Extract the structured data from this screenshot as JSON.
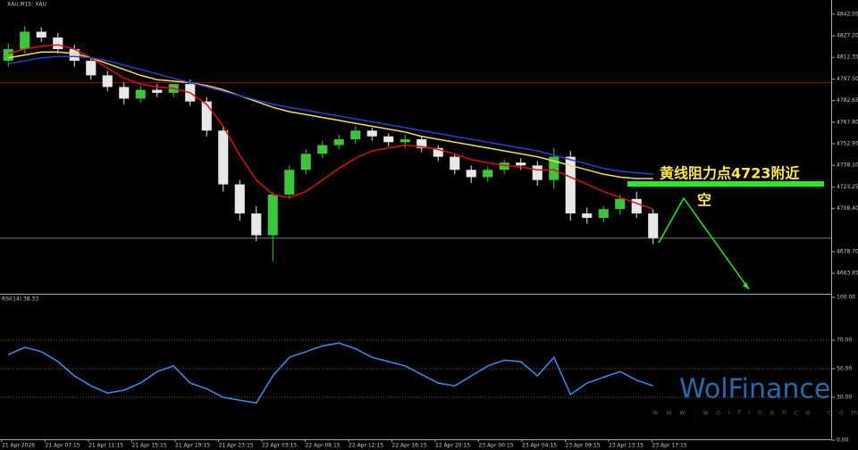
{
  "chart_data": {
    "type": "candlestick",
    "title": "XAU,M15: XAU",
    "rsi_label": "RSI(14) 38.33",
    "time_labels": [
      "21 Apr 2026",
      "21 Apr 07:15",
      "21 Apr 11:15",
      "21 Apr 15:15",
      "21 Apr 19:15",
      "21 Apr 23:15",
      "22 Apr 03:15",
      "22 Apr 08:15",
      "22 Apr 12:15",
      "22 Apr 16:15",
      "22 Apr 20:15",
      "23 Apr 00:15",
      "23 Apr 04:15",
      "23 Apr 09:15",
      "23 Apr 13:15",
      "23 Apr 17:15"
    ],
    "open": [
      4810,
      4818,
      4830,
      4826,
      4818,
      4810,
      4800,
      4792,
      4784,
      4790,
      4788,
      4794,
      4782,
      4762,
      4725,
      4705,
      4690,
      4718,
      4735,
      4746,
      4752,
      4756,
      4762,
      4758,
      4754,
      4756,
      4750,
      4744,
      4735,
      4730,
      4735,
      4740,
      4738,
      4728,
      4744,
      4705,
      4702,
      4708,
      4715,
      4705
    ],
    "high": [
      4822,
      4834,
      4833,
      4829,
      4821,
      4812,
      4803,
      4795,
      4793,
      4794,
      4792,
      4797,
      4785,
      4765,
      4728,
      4710,
      4720,
      4738,
      4749,
      4755,
      4759,
      4765,
      4764,
      4760,
      4759,
      4758,
      4752,
      4746,
      4738,
      4737,
      4742,
      4743,
      4741,
      4750,
      4748,
      4709,
      4710,
      4718,
      4720,
      4708
    ],
    "low": [
      4806,
      4815,
      4823,
      4815,
      4806,
      4797,
      4789,
      4780,
      4781,
      4785,
      4785,
      4779,
      4758,
      4720,
      4700,
      4686,
      4672,
      4715,
      4732,
      4743,
      4749,
      4753,
      4755,
      4751,
      4750,
      4747,
      4741,
      4732,
      4726,
      4727,
      4732,
      4735,
      4724,
      4722,
      4700,
      4698,
      4699,
      4704,
      4702,
      4684
    ],
    "close": [
      4818,
      4830,
      4826,
      4818,
      4810,
      4800,
      4792,
      4784,
      4790,
      4788,
      4794,
      4782,
      4762,
      4725,
      4705,
      4690,
      4718,
      4735,
      4746,
      4752,
      4756,
      4762,
      4758,
      4754,
      4756,
      4750,
      4744,
      4735,
      4730,
      4735,
      4740,
      4738,
      4728,
      4744,
      4705,
      4702,
      4708,
      4715,
      4705,
      4688
    ],
    "series": [
      {
        "color": "#e01010",
        "values": [
          4815,
          4818,
          4820,
          4821,
          4818,
          4812,
          4805,
          4798,
          4794,
          4792,
          4791,
          4788,
          4780,
          4765,
          4745,
          4728,
          4718,
          4716,
          4720,
          4728,
          4736,
          4743,
          4748,
          4750,
          4752,
          4751,
          4749,
          4746,
          4742,
          4740,
          4738,
          4737,
          4735,
          4735,
          4730,
          4725,
          4720,
          4716,
          4712,
          4708
        ]
      },
      {
        "color": "#f2e04a",
        "values": [
          4812,
          4814,
          4816,
          4816,
          4815,
          4812,
          4808,
          4804,
          4800,
          4797,
          4796,
          4795,
          4793,
          4790,
          4786,
          4782,
          4778,
          4775,
          4773,
          4771,
          4769,
          4767,
          4765,
          4763,
          4761,
          4758,
          4756,
          4754,
          4752,
          4750,
          4748,
          4746,
          4744,
          4741,
          4738,
          4735,
          4732,
          4730,
          4729,
          4729
        ]
      },
      {
        "color": "#2a3fd8",
        "values": [
          4808,
          4810,
          4812,
          4813,
          4813,
          4812,
          4810,
          4807,
          4804,
          4801,
          4798,
          4795,
          4792,
          4789,
          4786,
          4783,
          4780,
          4778,
          4776,
          4774,
          4772,
          4770,
          4768,
          4766,
          4764,
          4762,
          4760,
          4758,
          4756,
          4754,
          4752,
          4750,
          4748,
          4745,
          4742,
          4739,
          4736,
          4734,
          4733,
          4732
        ]
      }
    ],
    "hline": 4795,
    "ylim": [
      4650.4,
      4851.8
    ],
    "yticks": [
      4842.05,
      {
        "value": 4827.2,
        "label": "4827.20"
      },
      4812.35,
      {
        "value": 4797.5,
        "label": "4797.50"
      },
      4782.65,
      {
        "value": 4767.8,
        "label": "4767.80"
      },
      4752.95,
      {
        "value": 4738.1,
        "label": "4738.10"
      },
      4723.25,
      {
        "value": 4708.4,
        "label": "4708.40"
      },
      {
        "value": 4678.7,
        "label": "4678.70"
      },
      4663.85
    ],
    "rsi": {
      "color": "#3a8ef0",
      "values": [
        60,
        65,
        62,
        55,
        45,
        38,
        33,
        35,
        40,
        48,
        52,
        40,
        36,
        30,
        28,
        26,
        45,
        58,
        62,
        66,
        68,
        64,
        58,
        55,
        52,
        46,
        40,
        38,
        45,
        52,
        56,
        55,
        45,
        58,
        32,
        40,
        44,
        48,
        42,
        38
      ],
      "ylim": [
        0,
        100
      ],
      "yticks": [
        {
          "value": 100,
          "label": "100.00"
        },
        {
          "value": 70,
          "label": "70.00"
        },
        {
          "value": 50,
          "label": "50.00"
        },
        {
          "value": 30,
          "label": "30.00"
        },
        {
          "value": 0,
          "label": "0.00"
        }
      ]
    },
    "annotation": "黄线阻力点4723附近",
    "annotation2": "空"
  },
  "watermark": "WolFinance",
  "watermark_url": "w w w . w o l f i n a n c e . c o m"
}
